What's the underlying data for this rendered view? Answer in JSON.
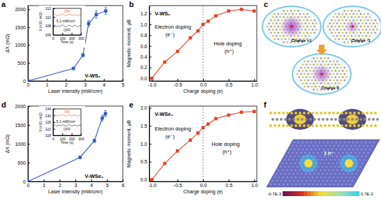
{
  "chart_data": [
    {
      "type": "line",
      "title": "a",
      "x": [
        0,
        2.4,
        2.9,
        3.2,
        3.6,
        4.1
      ],
      "values": [
        0,
        350,
        720,
        1600,
        1850,
        1950
      ],
      "errors": [
        0,
        30,
        40,
        80,
        100,
        90
      ],
      "color": "#3355cc",
      "marker": "square",
      "xlabel": "Laser intensity (mW/cm²)",
      "ylabel": "ΔX (mΩ)",
      "xlim": [
        0,
        5
      ],
      "xticks": [
        0,
        1,
        2,
        3,
        4,
        5
      ],
      "ylim": [
        0,
        2100
      ],
      "yticks": [
        0,
        500,
        1000,
        1500,
        2000
      ],
      "annotations": [
        "V-WS₂"
      ]
    },
    {
      "type": "line",
      "x": [
        0,
        20,
        40,
        60,
        80,
        100,
        120,
        140,
        160,
        180,
        200,
        220,
        240,
        260,
        280,
        300
      ],
      "series": [
        {
          "name": "ON",
          "color": "#e2552d",
          "values": [
            110.5,
            110.7,
            110.3,
            110.6,
            110.4,
            110.8,
            110.5,
            110.3,
            110.6,
            110.7,
            110.4,
            110.5,
            110.6,
            110.3,
            110.5,
            110.6
          ]
        },
        {
          "name": "OFF",
          "color": "#222222",
          "values": [
            108.0,
            108.2,
            107.8,
            108.1,
            107.9,
            108.3,
            108.0,
            107.8,
            108.1,
            108.2,
            107.9,
            108.0,
            108.2,
            107.8,
            108.0,
            108.1
          ]
        }
      ],
      "marker": "none",
      "xlabel": "Time (s)",
      "ylabel": "X (×10⁷ mΩ)",
      "xlim": [
        0,
        300
      ],
      "xticks": [
        0,
        100,
        200,
        300
      ],
      "ylim": [
        106,
        112
      ],
      "yticks": [
        106,
        108,
        110,
        112
      ],
      "annotations": [
        "5.1 mW/cm²"
      ]
    },
    {
      "type": "line",
      "title": "b",
      "x": [
        -1.0,
        -0.75,
        -0.5,
        -0.25,
        -0.1,
        0,
        0.1,
        0.25,
        0.5,
        0.75,
        1.0
      ],
      "values": [
        0,
        0.3,
        0.5,
        0.75,
        0.88,
        1.0,
        1.06,
        1.16,
        1.25,
        1.28,
        1.25
      ],
      "color": "#e8402a",
      "marker": "square",
      "xlabel": "Charge doping (e)",
      "ylabel": "Magnetic moment, μB",
      "xlim": [
        -1.05,
        1.05
      ],
      "xticks": [
        {
          "value": -1,
          "label": "-1.0"
        },
        -0.5,
        {
          "value": 0,
          "label": "0.0"
        },
        0.5,
        {
          "value": 1,
          "label": "1.0"
        }
      ],
      "ylim": [
        -0.05,
        1.35
      ],
      "yticks": [
        {
          "value": 0,
          "label": "0.0"
        },
        0.2,
        0.4,
        0.6,
        0.8,
        {
          "value": 1,
          "label": "1.0"
        },
        1.2
      ],
      "annotations": [
        "V-WS₂",
        "Electron doping",
        "(e⁻)",
        "Hole doping",
        "(h⁺)"
      ]
    },
    {
      "type": "line",
      "title": "d",
      "x": [
        0,
        3.3,
        4.2,
        4.7,
        4.9
      ],
      "values": [
        0,
        640,
        1080,
        1680,
        1800
      ],
      "errors": [
        0,
        30,
        40,
        80,
        80
      ],
      "color": "#3355cc",
      "marker": "square",
      "xlabel": "Laser intensity (mW/cm²)",
      "ylabel": "ΔX (mΩ)",
      "xlim": [
        0,
        6
      ],
      "xticks": [
        0,
        1,
        2,
        3,
        4,
        5,
        6
      ],
      "ylim": [
        0,
        2000
      ],
      "yticks": [
        0,
        500,
        1000,
        1500,
        2000
      ],
      "annotations": [
        "V-WSe₂"
      ]
    },
    {
      "type": "line",
      "x": [
        0,
        20,
        40,
        60,
        80,
        100,
        120,
        140,
        160,
        180,
        200,
        220,
        240,
        260,
        280,
        300
      ],
      "series": [
        {
          "name": "ON",
          "color": "#e2552d",
          "values": [
            130.0,
            130.5,
            129.6,
            130.2,
            129.8,
            130.6,
            130.0,
            129.5,
            130.3,
            130.4,
            129.7,
            130.1,
            130.5,
            129.6,
            130.0,
            130.2
          ]
        },
        {
          "name": "OFF",
          "color": "#222222",
          "values": [
            124.0,
            124.4,
            123.6,
            124.2,
            123.8,
            124.5,
            124.0,
            123.5,
            124.3,
            124.4,
            123.7,
            124.0,
            124.3,
            123.6,
            124.1,
            124.2
          ]
        }
      ],
      "marker": "none",
      "xlabel": "Time (s)",
      "ylabel": "X (×10⁷ mΩ)",
      "xlim": [
        0,
        300
      ],
      "xticks": [
        0,
        100,
        200,
        300
      ],
      "ylim": [
        118,
        134
      ],
      "yticks": [
        118,
        122,
        126,
        130,
        134
      ],
      "annotations": [
        "5.1 mW/cm²"
      ]
    },
    {
      "type": "line",
      "title": "e",
      "x": [
        -1.0,
        -0.75,
        -0.5,
        -0.25,
        -0.1,
        0,
        0.1,
        0.25,
        0.5,
        0.75,
        1.0
      ],
      "values": [
        0,
        0.45,
        0.8,
        1.1,
        1.3,
        1.45,
        1.55,
        1.7,
        1.8,
        1.88,
        1.9
      ],
      "color": "#e8402a",
      "marker": "square",
      "xlabel": "Charge doping (e)",
      "ylabel": "Magnetic moment, μB",
      "xlim": [
        -1.05,
        1.05
      ],
      "xticks": [
        {
          "value": -1,
          "label": "-1.0"
        },
        -0.5,
        {
          "value": 0,
          "label": "0.0"
        },
        0.5,
        {
          "value": 1,
          "label": "1.0"
        }
      ],
      "ylim": [
        -0.05,
        2.05
      ],
      "yticks": [
        {
          "value": 0,
          "label": "0.0"
        },
        0.5,
        {
          "value": 1,
          "label": "1.0"
        },
        1.5,
        {
          "value": 2,
          "label": "2.0"
        }
      ],
      "annotations": [
        "V-WSe₂",
        "Electron doping",
        "(e⁻)",
        "Hole doping",
        "(h⁺)"
      ]
    }
  ],
  "diagrams": [
    {
      "title": "c",
      "labels": [
        "Charge +1",
        "Charge -1",
        "Charge 0"
      ]
    },
    {
      "title": "f",
      "labels": [
        "1 h⁺"
      ],
      "colorbar": {
        "range": [
          -0.0007,
          0.0007
        ],
        "ticks": [
          {
            "value": -0.0007,
            "label": "-0.7E-3"
          },
          {
            "value": 0.0007,
            "label": "0.7E-3"
          }
        ]
      }
    }
  ]
}
